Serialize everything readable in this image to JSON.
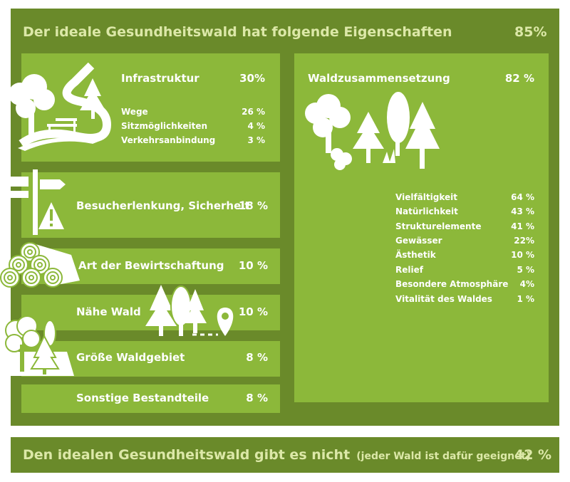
{
  "header": {
    "title": "Der ideale Gesundheitswald hat folgende Eigenschaften",
    "value": "85%"
  },
  "infrastruktur": {
    "label": "Infrastruktur",
    "value": "30%",
    "items": [
      {
        "label": "Wege",
        "value": "26 %"
      },
      {
        "label": "Sitzmöglichkeiten",
        "value": "4 %"
      },
      {
        "label": "Verkehrsanbindung",
        "value": "3 %"
      }
    ]
  },
  "besucherlenkung": {
    "label": "Besucherlenkung, Sicherheit",
    "value": "18 %"
  },
  "bewirtschaftung": {
    "label": "Art der Bewirtschaftung",
    "value": "10 %"
  },
  "naehe": {
    "label": "Nähe Wald",
    "value": "10 %"
  },
  "groesse": {
    "label": "Größe Waldgebiet",
    "value": "8 %"
  },
  "sonstige": {
    "label": "Sonstige Bestandteile",
    "value": "8 %"
  },
  "waldzusammensetzung": {
    "label": "Waldzusammensetzung",
    "value": "82 %",
    "items": [
      {
        "label": "Vielfältigkeit",
        "value": "64 %"
      },
      {
        "label": "Natürlichkeit",
        "value": "43 %"
      },
      {
        "label": "Strukturelemente",
        "value": "41 %"
      },
      {
        "label": "Gewässer",
        "value": "22%"
      },
      {
        "label": "Ästhetik",
        "value": "10 %"
      },
      {
        "label": "Relief",
        "value": "5 %"
      },
      {
        "label": "Besondere Atmosphäre",
        "value": "4%"
      },
      {
        "label": "Vitalität des Waldes",
        "value": "1 %"
      }
    ]
  },
  "footer": {
    "title": "Den idealen Gesundheitswald gibt es nicht",
    "note": "(jeder Wald ist dafür geeignet)",
    "value": "42 %"
  },
  "colors": {
    "frame": "#6a8a2a",
    "box": "#8cb83a",
    "title_text": "#dce8a8",
    "text": "#ffffff"
  }
}
